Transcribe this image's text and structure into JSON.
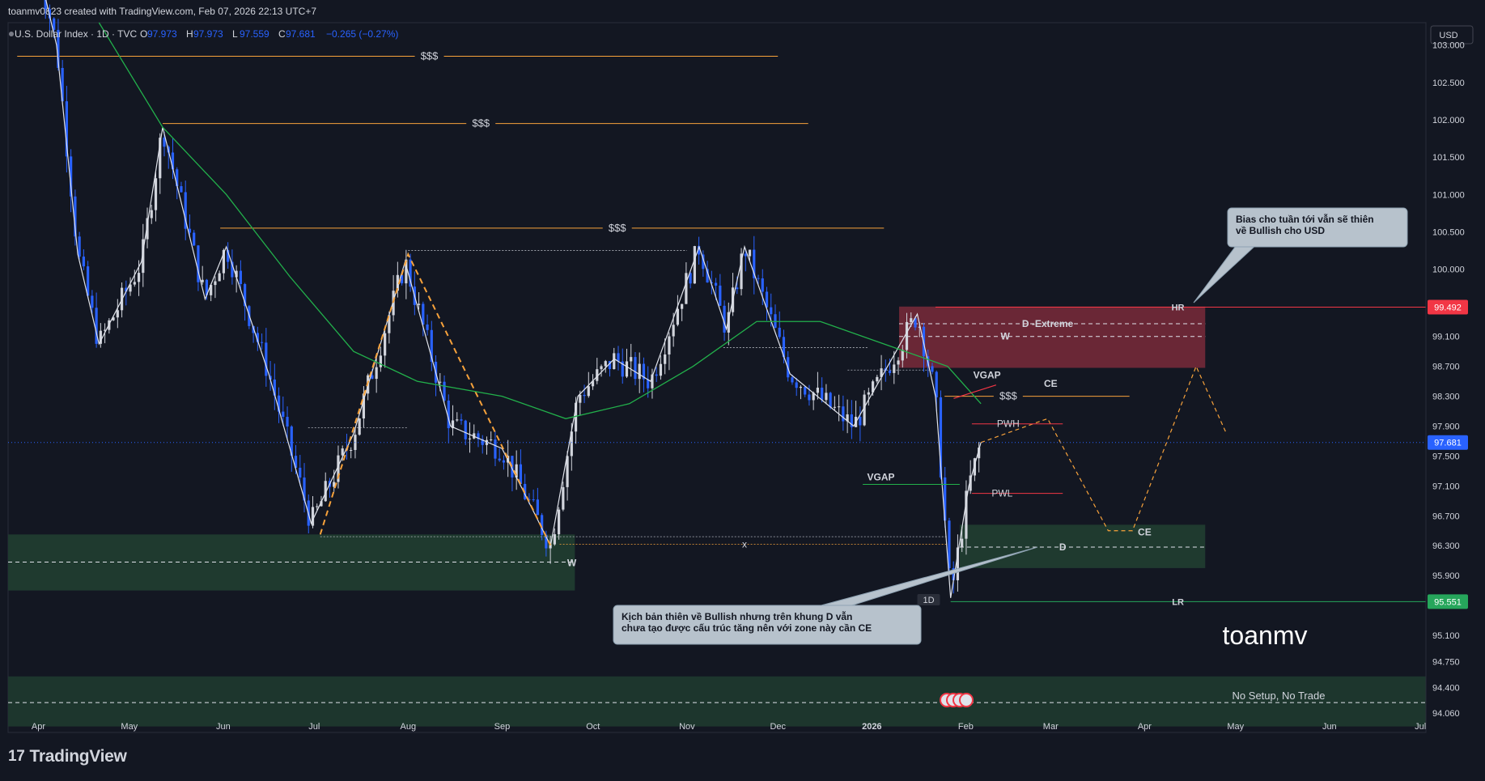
{
  "header": {
    "created_by": "toanmv0823 created with TradingView.com, Feb 07, 2026 22:13 UTC+7"
  },
  "legend": {
    "symbol": "U.S. Dollar Index · 1D · TVC",
    "o_label": "O",
    "o_value": "97.973",
    "h_label": "H",
    "h_value": "97.973",
    "l_label": "L",
    "l_value": "97.559",
    "c_label": "C",
    "c_value": "97.681",
    "change": "−0.265 (−0.27%)"
  },
  "footer": {
    "brand": "TradingView"
  },
  "currency": "USD",
  "colors": {
    "background": "#131722",
    "bull": "#d1d4dc",
    "bear": "#2962ff",
    "ma": "#22b04b",
    "liquidity": "#f7a23b",
    "premium_zone": "#7a2a3a",
    "discount_zone": "#1f3a2f",
    "last_price": "#2962ff",
    "hr_line": "#f23645",
    "lr_line": "#26a65b"
  },
  "chart_data": {
    "type": "candlestick",
    "symbol": "U.S. Dollar Index",
    "timeframe": "1D",
    "ylim": [
      93.8,
      103.3
    ],
    "y_ticks": [
      "103.000",
      "102.500",
      "102.000",
      "101.500",
      "101.000",
      "100.500",
      "100.000",
      "99.100",
      "98.700",
      "98.300",
      "97.900",
      "97.500",
      "97.100",
      "96.700",
      "96.300",
      "95.900",
      "95.100",
      "94.750",
      "94.400",
      "94.060"
    ],
    "x_ticks": [
      "Apr",
      "May",
      "Jun",
      "Jul",
      "Aug",
      "Sep",
      "Oct",
      "Nov",
      "Dec",
      "2026",
      "Feb",
      "Mar",
      "Apr",
      "May",
      "Jun",
      "Jul"
    ],
    "last_price": "97.681",
    "hr_price": "99.492",
    "lr_price": "95.551",
    "price_path": [
      [
        "2025-03-31",
        104.2
      ],
      [
        "2025-04-07",
        103.0
      ],
      [
        "2025-04-14",
        100.2
      ],
      [
        "2025-04-21",
        99.0
      ],
      [
        "2025-05-05",
        100.1
      ],
      [
        "2025-05-12",
        101.9
      ],
      [
        "2025-05-26",
        99.6
      ],
      [
        "2025-06-02",
        100.3
      ],
      [
        "2025-06-16",
        98.6
      ],
      [
        "2025-06-30",
        96.6
      ],
      [
        "2025-07-14",
        97.8
      ],
      [
        "2025-07-31",
        100.1
      ],
      [
        "2025-08-15",
        97.9
      ],
      [
        "2025-09-01",
        97.6
      ],
      [
        "2025-09-17",
        96.3
      ],
      [
        "2025-09-26",
        98.3
      ],
      [
        "2025-10-08",
        98.8
      ],
      [
        "2025-10-20",
        98.5
      ],
      [
        "2025-11-05",
        100.3
      ],
      [
        "2025-11-14",
        99.2
      ],
      [
        "2025-11-20",
        100.3
      ],
      [
        "2025-12-05",
        98.6
      ],
      [
        "2025-12-26",
        97.9
      ],
      [
        "2026-01-09",
        98.9
      ],
      [
        "2026-01-16",
        99.4
      ],
      [
        "2026-01-22",
        98.3
      ],
      [
        "2026-01-27",
        95.6
      ],
      [
        "2026-02-02",
        97.1
      ],
      [
        "2026-02-06",
        97.681
      ]
    ],
    "ma_path": [
      [
        "2025-04-21",
        103.3
      ],
      [
        "2025-05-12",
        101.9
      ],
      [
        "2025-06-02",
        101.0
      ],
      [
        "2025-06-23",
        99.9
      ],
      [
        "2025-07-14",
        98.9
      ],
      [
        "2025-08-04",
        98.5
      ],
      [
        "2025-09-01",
        98.3
      ],
      [
        "2025-09-22",
        98.0
      ],
      [
        "2025-10-13",
        98.2
      ],
      [
        "2025-11-03",
        98.7
      ],
      [
        "2025-11-24",
        99.3
      ],
      [
        "2025-12-15",
        99.3
      ],
      [
        "2026-01-05",
        99.0
      ],
      [
        "2026-01-26",
        98.7
      ],
      [
        "2026-02-06",
        98.2
      ]
    ],
    "projection": [
      [
        "2026-02-28",
        98.0
      ],
      [
        "2026-03-20",
        96.5
      ],
      [
        "2026-03-28",
        96.5
      ],
      [
        "2026-04-18",
        98.7
      ],
      [
        "2026-04-28",
        97.8
      ]
    ],
    "liquidity_levels": [
      {
        "label": "$$$",
        "price": 102.85
      },
      {
        "label": "$$$",
        "price": 101.95
      },
      {
        "label": "$$$",
        "price": 100.55
      },
      {
        "label": "$$$",
        "price": 98.3
      }
    ],
    "zones": [
      {
        "name": "D -Extreme",
        "top": 99.5,
        "bottom": 98.68,
        "mid_label": "W",
        "mid": 99.1
      },
      {
        "name": "D",
        "top": 96.58,
        "bottom": 96.0,
        "mid_label": "D",
        "mid": 96.28
      },
      {
        "name": "W (left)",
        "top": 96.45,
        "bottom": 95.7,
        "mid_label": "W",
        "mid": 96.08
      },
      {
        "name": "No Setup, No Trade",
        "top": 94.55,
        "bottom": 93.88,
        "mid": 94.2
      }
    ],
    "labels": {
      "d_extreme": "D -Extreme",
      "w": "W",
      "w2": "W",
      "d": "D",
      "ce1": "CE",
      "ce2": "CE",
      "pwh": "PWH",
      "pwl": "PWL",
      "vgap1": "VGAP",
      "vgap2": "VGAP",
      "sss": "$$$",
      "hr": "HR",
      "lr": "LR",
      "x": "x",
      "one_d": "1D",
      "watermark": "toanmv",
      "no_setup": "No Setup, No Trade"
    },
    "callouts": [
      {
        "lines": [
          "Bias cho tuần tới vẫn sẽ thiên",
          "về Bullish cho USD"
        ]
      },
      {
        "lines": [
          "Kịch bản thiên về Bullish nhưng trên khung D vẫn",
          "chưa tạo được cấu trúc tăng nên với zone này cần CE"
        ]
      }
    ]
  }
}
